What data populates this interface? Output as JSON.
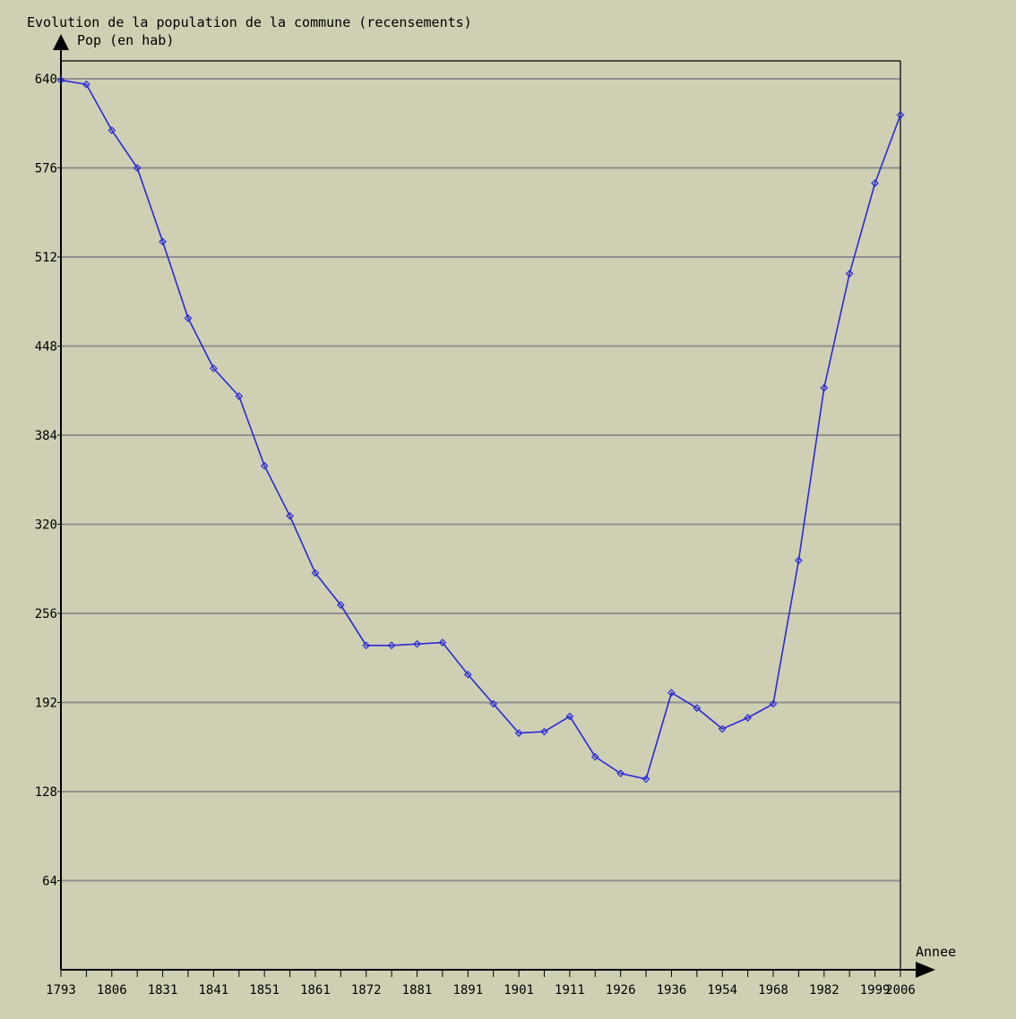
{
  "chart_data": {
    "type": "line",
    "title": "Evolution de la population de la commune (recensements)",
    "ylabel": "Pop (en hab)",
    "xlabel": "Annee",
    "ylim": [
      0,
      640
    ],
    "yticks": [
      64,
      128,
      192,
      256,
      320,
      384,
      448,
      512,
      576,
      640
    ],
    "xtick_labels": [
      "1793",
      "1806",
      "1831",
      "1841",
      "1851",
      "1861",
      "1872",
      "1881",
      "1891",
      "1901",
      "1911",
      "1926",
      "1936",
      "1954",
      "1968",
      "1982",
      "1999",
      "2006"
    ],
    "grid": true,
    "colors": {
      "background": "#cfcfb4",
      "line": "#2a2ad6",
      "grid": "#8f8f8f",
      "axis": "#000000"
    },
    "series": [
      {
        "values": [
          639,
          636,
          603,
          576,
          523,
          468,
          432,
          412,
          362,
          326,
          285,
          262,
          233,
          233,
          234,
          235,
          212,
          191,
          170,
          171,
          182,
          153,
          141,
          137,
          199,
          188,
          173,
          181,
          191,
          294,
          418,
          500,
          565,
          614
        ]
      }
    ]
  }
}
